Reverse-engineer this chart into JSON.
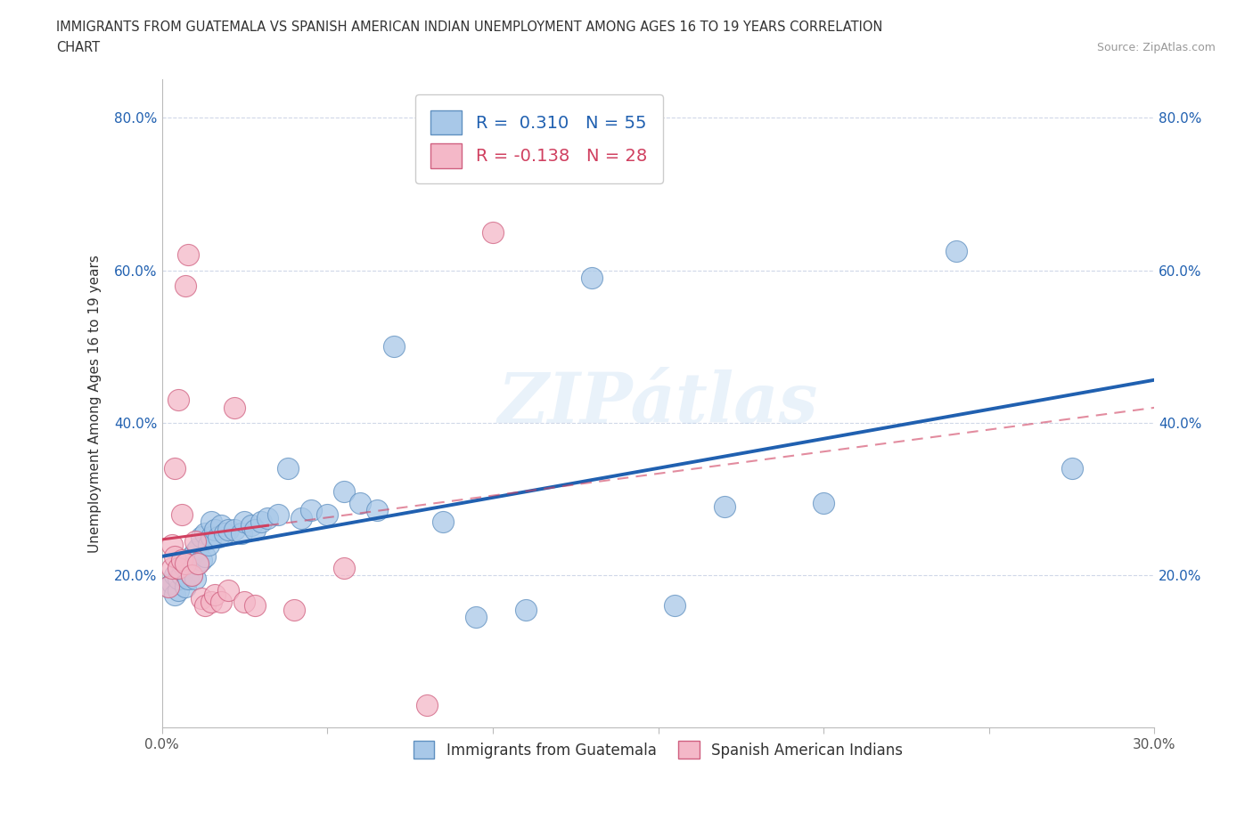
{
  "title_line1": "IMMIGRANTS FROM GUATEMALA VS SPANISH AMERICAN INDIAN UNEMPLOYMENT AMONG AGES 16 TO 19 YEARS CORRELATION",
  "title_line2": "CHART",
  "source": "Source: ZipAtlas.com",
  "ylabel": "Unemployment Among Ages 16 to 19 years",
  "xlim": [
    0.0,
    0.3
  ],
  "ylim": [
    0.0,
    0.85
  ],
  "xticks": [
    0.0,
    0.05,
    0.1,
    0.15,
    0.2,
    0.25,
    0.3
  ],
  "xticklabels": [
    "0.0%",
    "",
    "",
    "",
    "",
    "",
    "30.0%"
  ],
  "yticks": [
    0.0,
    0.2,
    0.4,
    0.6,
    0.8
  ],
  "yticklabels": [
    "",
    "20.0%",
    "40.0%",
    "60.0%",
    "80.0%"
  ],
  "R_blue": 0.31,
  "N_blue": 55,
  "R_pink": -0.138,
  "N_pink": 28,
  "blue_scatter_color": "#a8c8e8",
  "blue_scatter_edge": "#6090c0",
  "pink_scatter_color": "#f4b8c8",
  "pink_scatter_edge": "#d06080",
  "blue_line_color": "#2060b0",
  "pink_line_color": "#d04060",
  "legend_label_blue": "Immigrants from Guatemala",
  "legend_label_pink": "Spanish American Indians",
  "watermark": "ZIPátlas",
  "blue_scatter_x": [
    0.002,
    0.003,
    0.004,
    0.004,
    0.005,
    0.005,
    0.006,
    0.006,
    0.007,
    0.007,
    0.008,
    0.008,
    0.009,
    0.009,
    0.01,
    0.01,
    0.011,
    0.011,
    0.012,
    0.012,
    0.013,
    0.013,
    0.014,
    0.015,
    0.015,
    0.016,
    0.017,
    0.018,
    0.019,
    0.02,
    0.022,
    0.024,
    0.025,
    0.027,
    0.028,
    0.03,
    0.032,
    0.035,
    0.038,
    0.042,
    0.045,
    0.05,
    0.055,
    0.06,
    0.065,
    0.07,
    0.085,
    0.095,
    0.11,
    0.13,
    0.155,
    0.17,
    0.2,
    0.24,
    0.275
  ],
  "blue_scatter_y": [
    0.185,
    0.19,
    0.175,
    0.2,
    0.18,
    0.195,
    0.2,
    0.215,
    0.185,
    0.21,
    0.195,
    0.22,
    0.2,
    0.225,
    0.195,
    0.23,
    0.215,
    0.235,
    0.22,
    0.25,
    0.225,
    0.255,
    0.24,
    0.25,
    0.27,
    0.26,
    0.25,
    0.265,
    0.255,
    0.26,
    0.26,
    0.255,
    0.27,
    0.265,
    0.26,
    0.27,
    0.275,
    0.28,
    0.34,
    0.275,
    0.285,
    0.28,
    0.31,
    0.295,
    0.285,
    0.5,
    0.27,
    0.145,
    0.155,
    0.59,
    0.16,
    0.29,
    0.295,
    0.625,
    0.34
  ],
  "pink_scatter_x": [
    0.002,
    0.003,
    0.003,
    0.004,
    0.004,
    0.005,
    0.005,
    0.006,
    0.006,
    0.007,
    0.007,
    0.008,
    0.009,
    0.01,
    0.011,
    0.012,
    0.013,
    0.015,
    0.016,
    0.018,
    0.02,
    0.022,
    0.025,
    0.028,
    0.04,
    0.055,
    0.08,
    0.1
  ],
  "pink_scatter_y": [
    0.185,
    0.21,
    0.24,
    0.225,
    0.34,
    0.21,
    0.43,
    0.22,
    0.28,
    0.215,
    0.58,
    0.62,
    0.2,
    0.245,
    0.215,
    0.17,
    0.16,
    0.165,
    0.175,
    0.165,
    0.18,
    0.42,
    0.165,
    0.16,
    0.155,
    0.21,
    0.03,
    0.65
  ]
}
